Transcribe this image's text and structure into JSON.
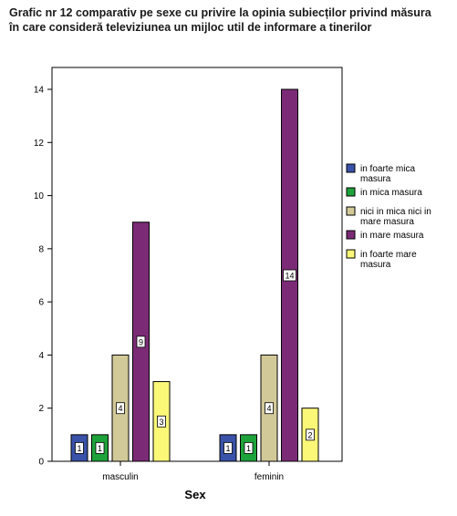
{
  "chart_data": {
    "type": "bar",
    "title": "Grafic nr 12 comparativ pe sexe cu privire la opinia subiecților privind măsura în care consideră televiziunea un mijloc util de informare a tinerilor",
    "xlabel": "Sex",
    "ylabel": "",
    "ylim": [
      0,
      14
    ],
    "yticks": [
      0,
      2,
      4,
      6,
      8,
      10,
      12,
      14
    ],
    "grid": false,
    "legend_position": "right",
    "categories": [
      "masculin",
      "feminin"
    ],
    "series": [
      {
        "name": "in foarte mica masura",
        "values": [
          1,
          1
        ],
        "color": "#3a52a8"
      },
      {
        "name": "in mica masura",
        "values": [
          1,
          1
        ],
        "color": "#1ea33b"
      },
      {
        "name": "nici in mica nici in mare masura",
        "values": [
          4,
          4
        ],
        "color": "#d2c998"
      },
      {
        "name": "in mare masura",
        "values": [
          9,
          14
        ],
        "color": "#7b2b76"
      },
      {
        "name": "in foarte mare masura",
        "values": [
          3,
          2
        ],
        "color": "#fbf878"
      }
    ]
  }
}
